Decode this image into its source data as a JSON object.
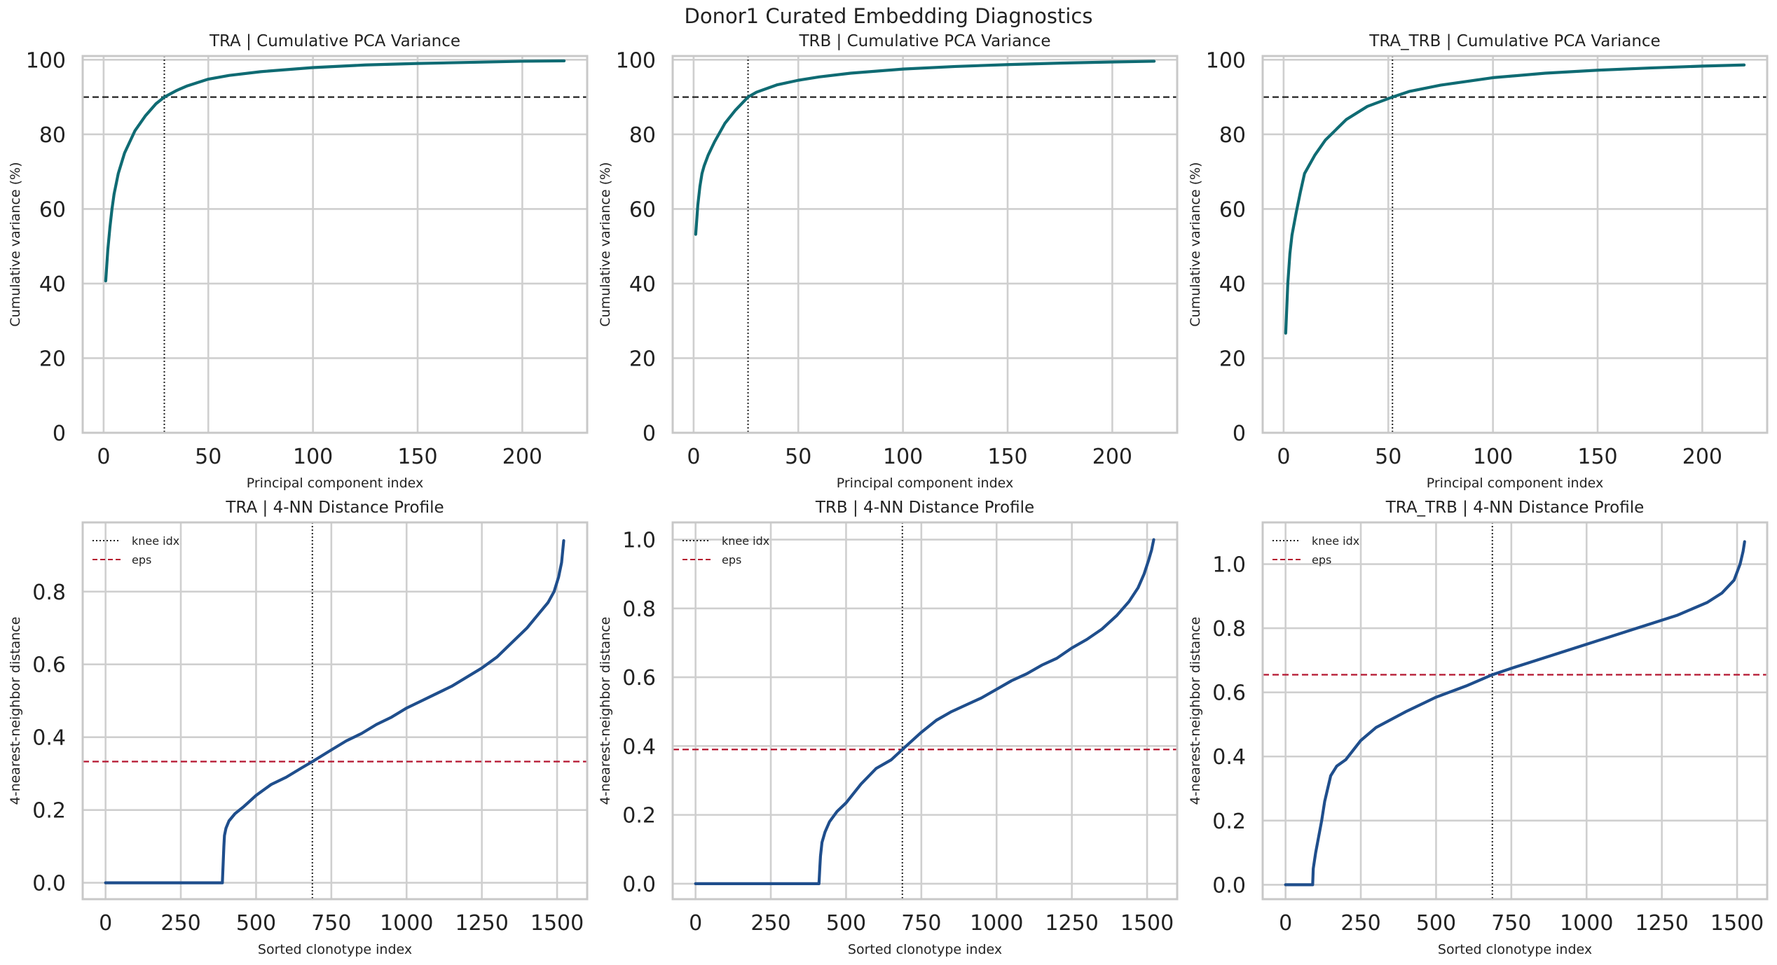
{
  "suptitle": "Donor1 Curated Embedding Diagnostics",
  "colors": {
    "variance_line": "#0f6b73",
    "distance_line": "#1f4e8c",
    "threshold_line": "#222222",
    "eps_line": "#b5142f",
    "grid": "#cfcfcf",
    "frame": "#c8c8c8"
  },
  "chart_data": [
    {
      "id": "tra-variance",
      "type": "line",
      "title": "TRA | Cumulative PCA Variance",
      "xlabel": "Principal component index",
      "ylabel": "Cumulative variance (%)",
      "xlim": [
        -10,
        231
      ],
      "ylim": [
        0,
        101
      ],
      "xticks": [
        0,
        50,
        100,
        150,
        200
      ],
      "yticks": [
        0,
        20,
        40,
        60,
        80,
        100
      ],
      "grid": true,
      "series": [
        {
          "x": [
            1,
            2,
            3,
            4,
            5,
            7,
            10,
            15,
            20,
            25,
            29,
            35,
            40,
            50,
            60,
            75,
            100,
            125,
            150,
            175,
            200,
            220
          ],
          "y": [
            40.7,
            49,
            55,
            60,
            64,
            69.5,
            75,
            81,
            85,
            88.2,
            90,
            91.8,
            93,
            94.8,
            95.8,
            96.8,
            97.9,
            98.6,
            99,
            99.3,
            99.6,
            99.7
          ]
        }
      ],
      "hline": 90,
      "vline": 29
    },
    {
      "id": "trb-variance",
      "type": "line",
      "title": "TRB | Cumulative PCA Variance",
      "xlabel": "Principal component index",
      "ylabel": "Cumulative variance (%)",
      "xlim": [
        -10,
        231
      ],
      "ylim": [
        0,
        101
      ],
      "xticks": [
        0,
        50,
        100,
        150,
        200
      ],
      "yticks": [
        0,
        20,
        40,
        60,
        80,
        100
      ],
      "grid": true,
      "series": [
        {
          "x": [
            1,
            2,
            3,
            4,
            5,
            7,
            10,
            15,
            20,
            26,
            30,
            40,
            50,
            60,
            75,
            100,
            125,
            150,
            175,
            200,
            220
          ],
          "y": [
            53.2,
            61,
            66,
            69.5,
            71.5,
            74.5,
            78,
            83,
            86.5,
            90,
            91.3,
            93.3,
            94.5,
            95.4,
            96.4,
            97.5,
            98.2,
            98.7,
            99.1,
            99.4,
            99.6
          ]
        }
      ],
      "hline": 90,
      "vline": 26
    },
    {
      "id": "tratrb-variance",
      "type": "line",
      "title": "TRA_TRB | Cumulative PCA Variance",
      "xlabel": "Principal component index",
      "ylabel": "Cumulative variance (%)",
      "xlim": [
        -10,
        231
      ],
      "ylim": [
        0,
        101
      ],
      "xticks": [
        0,
        50,
        100,
        150,
        200
      ],
      "yticks": [
        0,
        20,
        40,
        60,
        80,
        100
      ],
      "grid": true,
      "series": [
        {
          "x": [
            1,
            2,
            3,
            4,
            6,
            8,
            10,
            15,
            20,
            30,
            40,
            52,
            60,
            75,
            100,
            125,
            150,
            175,
            200,
            220
          ],
          "y": [
            26.7,
            40,
            48,
            53,
            59,
            64.5,
            69.5,
            74.5,
            78.5,
            84,
            87.5,
            90,
            91.5,
            93.2,
            95.2,
            96.4,
            97.2,
            97.8,
            98.3,
            98.6
          ]
        }
      ],
      "hline": 90,
      "vline": 52
    },
    {
      "id": "tra-knn",
      "type": "line",
      "title": "TRA | 4-NN Distance Profile",
      "xlabel": "Sorted clonotype index",
      "ylabel": "4-nearest-neighbor distance",
      "xlim": [
        -76,
        1600
      ],
      "ylim": [
        -0.045,
        0.99
      ],
      "xticks": [
        0,
        250,
        500,
        750,
        1000,
        1250,
        1500
      ],
      "yticks": [
        0.0,
        0.2,
        0.4,
        0.6,
        0.8
      ],
      "ytick_labels": [
        "0.0",
        "0.2",
        "0.4",
        "0.6",
        "0.8"
      ],
      "grid": true,
      "legend": {
        "position": "top-left",
        "entries": [
          "knee idx",
          "eps"
        ]
      },
      "series": [
        {
          "x": [
            0,
            388,
            390,
            393,
            395,
            400,
            410,
            430,
            460,
            500,
            550,
            600,
            650,
            687,
            750,
            800,
            850,
            900,
            950,
            1000,
            1050,
            1100,
            1150,
            1200,
            1250,
            1300,
            1350,
            1400,
            1440,
            1470,
            1490,
            1505,
            1515,
            1522
          ],
          "y": [
            0,
            0,
            0.04,
            0.1,
            0.13,
            0.15,
            0.17,
            0.19,
            0.21,
            0.24,
            0.27,
            0.29,
            0.315,
            0.333,
            0.365,
            0.39,
            0.41,
            0.435,
            0.455,
            0.48,
            0.5,
            0.52,
            0.54,
            0.565,
            0.59,
            0.62,
            0.66,
            0.7,
            0.74,
            0.77,
            0.8,
            0.84,
            0.88,
            0.94
          ]
        }
      ],
      "hline": 0.333,
      "vline": 687
    },
    {
      "id": "trb-knn",
      "type": "line",
      "title": "TRB | 4-NN Distance Profile",
      "xlabel": "Sorted clonotype index",
      "ylabel": "4-nearest-neighbor distance",
      "xlim": [
        -76,
        1600
      ],
      "ylim": [
        -0.045,
        1.05
      ],
      "xticks": [
        0,
        250,
        500,
        750,
        1000,
        1250,
        1500
      ],
      "yticks": [
        0.0,
        0.2,
        0.4,
        0.6,
        0.8,
        1.0
      ],
      "ytick_labels": [
        "0.0",
        "0.2",
        "0.4",
        "0.6",
        "0.8",
        "1.0"
      ],
      "grid": true,
      "legend": {
        "position": "top-left",
        "entries": [
          "knee idx",
          "eps"
        ]
      },
      "series": [
        {
          "x": [
            0,
            410,
            413,
            415,
            420,
            430,
            445,
            470,
            500,
            550,
            600,
            650,
            687,
            750,
            800,
            850,
            900,
            950,
            1000,
            1050,
            1100,
            1150,
            1200,
            1250,
            1300,
            1350,
            1400,
            1440,
            1470,
            1490,
            1505,
            1515,
            1522
          ],
          "y": [
            0,
            0,
            0.05,
            0.08,
            0.12,
            0.15,
            0.18,
            0.21,
            0.235,
            0.29,
            0.335,
            0.36,
            0.39,
            0.44,
            0.475,
            0.5,
            0.52,
            0.54,
            0.565,
            0.59,
            0.61,
            0.635,
            0.655,
            0.685,
            0.71,
            0.74,
            0.78,
            0.82,
            0.86,
            0.9,
            0.94,
            0.97,
            1.0
          ]
        }
      ],
      "hline": 0.39,
      "vline": 687
    },
    {
      "id": "tratrb-knn",
      "type": "line",
      "title": "TRA_TRB | 4-NN Distance Profile",
      "xlabel": "Sorted clonotype index",
      "ylabel": "4-nearest-neighbor distance",
      "xlim": [
        -76,
        1600
      ],
      "ylim": [
        -0.045,
        1.13
      ],
      "xticks": [
        0,
        250,
        500,
        750,
        1000,
        1250,
        1500
      ],
      "yticks": [
        0.0,
        0.2,
        0.4,
        0.6,
        0.8,
        1.0
      ],
      "ytick_labels": [
        "0.0",
        "0.2",
        "0.4",
        "0.6",
        "0.8",
        "1.0"
      ],
      "grid": true,
      "legend": {
        "position": "top-left",
        "entries": [
          "knee idx",
          "eps"
        ]
      },
      "series": [
        {
          "x": [
            0,
            90,
            92,
            100,
            110,
            120,
            130,
            140,
            150,
            170,
            200,
            250,
            300,
            400,
            500,
            600,
            687,
            750,
            800,
            900,
            1000,
            1100,
            1200,
            1300,
            1400,
            1450,
            1490,
            1510,
            1520,
            1525
          ],
          "y": [
            0,
            0,
            0.05,
            0.1,
            0.15,
            0.2,
            0.26,
            0.3,
            0.34,
            0.37,
            0.39,
            0.45,
            0.49,
            0.54,
            0.585,
            0.62,
            0.655,
            0.675,
            0.69,
            0.72,
            0.75,
            0.78,
            0.81,
            0.84,
            0.88,
            0.91,
            0.95,
            1.0,
            1.04,
            1.07
          ]
        }
      ],
      "hline": 0.655,
      "vline": 687
    }
  ]
}
